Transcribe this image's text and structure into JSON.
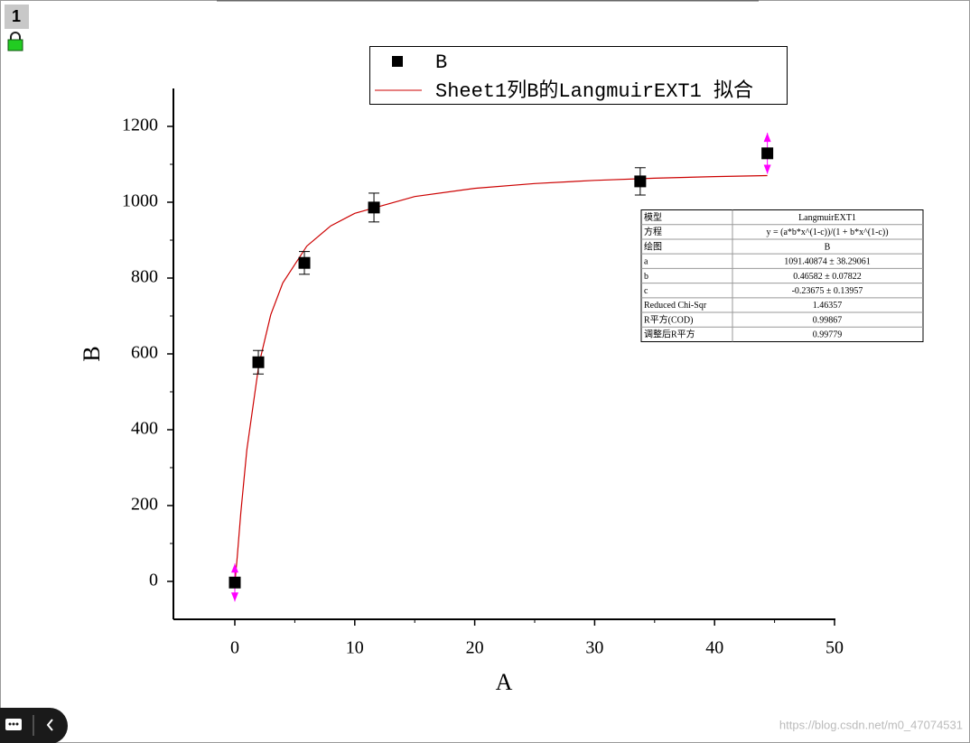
{
  "window": {
    "badge": "1",
    "watermark": "https://blog.csdn.net/m0_47074531"
  },
  "chart_data": {
    "type": "scatter",
    "xlabel": "A",
    "ylabel": "B",
    "xlim": [
      -5,
      50
    ],
    "xticks": [
      0,
      10,
      20,
      30,
      40,
      50
    ],
    "ylim": [
      -100,
      1300
    ],
    "yticks": [
      0,
      200,
      400,
      600,
      800,
      1000,
      1200
    ],
    "legend": "top",
    "series": [
      {
        "name": "B",
        "type": "scatter",
        "color": "#000000",
        "x": [
          0,
          1.96,
          5.8,
          11.6,
          33.8,
          44.4
        ],
        "values": [
          -3,
          578,
          840,
          986,
          1055,
          1129
        ],
        "errors": [
          50,
          31,
          30,
          38,
          36,
          54
        ],
        "error_colors": [
          "#ff00ff",
          "#000000",
          "#000000",
          "#000000",
          "#000000",
          "#ff00ff"
        ]
      },
      {
        "name": "Sheet1列B的LangmuirEXT1 拟合",
        "type": "line",
        "color": "#cc0000",
        "x": [
          0,
          0.05,
          0.2,
          0.5,
          1,
          2,
          3,
          4,
          6,
          8,
          10,
          15,
          20,
          25,
          30,
          35,
          40,
          44.4
        ],
        "values": [
          0,
          12.4,
          65.3,
          180.2,
          346.8,
          571.2,
          703.3,
          787.1,
          884.4,
          937.6,
          970.6,
          1014.9,
          1036.6,
          1049.4,
          1057.6,
          1063.3,
          1067.5,
          1070.3
        ]
      }
    ],
    "fit_table": {
      "rows": [
        [
          "模型",
          "LangmuirEXT1"
        ],
        [
          "方程",
          "y = (a*b*x^(1-c))/(1 + b*x^(1-c))"
        ],
        [
          "绘图",
          "B"
        ],
        [
          "a",
          "1091.40874 ± 38.29061"
        ],
        [
          "b",
          "0.46582 ± 0.07822"
        ],
        [
          "c",
          "-0.23675 ± 0.13957"
        ],
        [
          "Reduced Chi-Sqr",
          "1.46357"
        ],
        [
          "R平方(COD)",
          "0.99867"
        ],
        [
          "调整后R平方",
          "0.99779"
        ]
      ]
    }
  }
}
